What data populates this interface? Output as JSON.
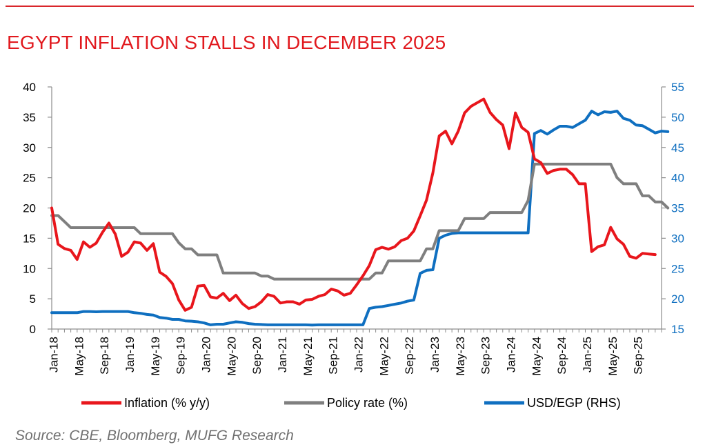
{
  "page": {
    "title": "EGYPT INFLATION STALLS IN DECEMBER 2025",
    "source": "Source: CBE, Bloomberg, MUFG Research"
  },
  "colors": {
    "accent": "#e1191e",
    "inflation": "#e8161c",
    "policy": "#7f7f7f",
    "usd": "#0f6fc0",
    "axis": "#8c8c8c"
  },
  "chart_data": {
    "type": "line",
    "title": "EGYPT INFLATION STALLS IN DECEMBER 2025",
    "xlabel": "",
    "ylabel": "",
    "ylim": [
      0,
      40
    ],
    "y2lim": [
      15,
      55
    ],
    "yticks": [
      0,
      5,
      10,
      15,
      20,
      25,
      30,
      35,
      40
    ],
    "y2ticks": [
      15,
      20,
      25,
      30,
      35,
      40,
      45,
      50,
      55
    ],
    "start": "Jan-18",
    "x_tick_labels": [
      "Jan-18",
      "May-18",
      "Sep-18",
      "Jan-19",
      "May-19",
      "Sep-19",
      "Jan-20",
      "May-20",
      "Sep-20",
      "Jan-21",
      "May-21",
      "Sep-21",
      "Jan-22",
      "May-22",
      "Sep-22",
      "Jan-23",
      "May-23",
      "Sep-23",
      "Jan-24",
      "May-24",
      "Sep-24",
      "Jan-25",
      "May-25",
      "Sep-25"
    ],
    "series": [
      {
        "name": "Inflation (% y/y)",
        "axis": "left",
        "color": "#e8161c",
        "values": [
          20.0,
          14.0,
          13.3,
          13.0,
          11.5,
          14.4,
          13.5,
          14.2,
          16.0,
          17.5,
          15.7,
          12.0,
          12.7,
          14.4,
          14.2,
          13.0,
          14.1,
          9.4,
          8.7,
          7.5,
          4.8,
          3.1,
          3.6,
          7.1,
          7.2,
          5.3,
          5.1,
          5.9,
          4.7,
          5.6,
          4.2,
          3.4,
          3.7,
          4.5,
          5.7,
          5.4,
          4.3,
          4.5,
          4.5,
          4.1,
          4.8,
          4.9,
          5.4,
          5.7,
          6.6,
          6.3,
          5.6,
          5.9,
          7.3,
          8.8,
          10.5,
          13.1,
          13.5,
          13.2,
          13.6,
          14.6,
          15.0,
          16.2,
          18.7,
          21.3,
          25.8,
          31.9,
          32.7,
          30.6,
          32.7,
          35.7,
          36.8,
          37.4,
          38.0,
          35.8,
          34.6,
          33.7,
          29.8,
          35.7,
          33.3,
          32.5,
          28.1,
          27.5,
          25.7,
          26.2,
          26.4,
          26.4,
          25.5,
          24.0,
          24.0,
          12.8,
          13.6,
          13.9,
          16.8,
          14.9,
          14.0,
          12.0,
          11.7,
          12.5,
          12.4,
          12.3
        ]
      },
      {
        "name": "Policy rate (%)",
        "axis": "left",
        "color": "#7f7f7f",
        "values": [
          18.75,
          18.75,
          17.75,
          16.75,
          16.75,
          16.75,
          16.75,
          16.75,
          16.75,
          16.75,
          16.75,
          16.75,
          16.75,
          16.75,
          15.75,
          15.75,
          15.75,
          15.75,
          15.75,
          15.75,
          14.25,
          13.25,
          13.25,
          12.25,
          12.25,
          12.25,
          12.25,
          9.25,
          9.25,
          9.25,
          9.25,
          9.25,
          9.25,
          8.75,
          8.75,
          8.25,
          8.25,
          8.25,
          8.25,
          8.25,
          8.25,
          8.25,
          8.25,
          8.25,
          8.25,
          8.25,
          8.25,
          8.25,
          8.25,
          8.25,
          8.25,
          9.25,
          9.25,
          11.25,
          11.25,
          11.25,
          11.25,
          11.25,
          11.25,
          13.25,
          13.25,
          16.25,
          16.25,
          16.25,
          16.25,
          18.25,
          18.25,
          18.25,
          18.25,
          19.25,
          19.25,
          19.25,
          19.25,
          19.25,
          19.25,
          21.25,
          27.25,
          27.25,
          27.25,
          27.25,
          27.25,
          27.25,
          27.25,
          27.25,
          27.25,
          27.25,
          27.25,
          27.25,
          27.25,
          25.0,
          24.0,
          24.0,
          24.0,
          22.0,
          22.0,
          21.0,
          21.0,
          20.0
        ]
      },
      {
        "name": "USD/EGP (RHS)",
        "axis": "right",
        "color": "#0f6fc0",
        "values": [
          17.7,
          17.7,
          17.7,
          17.7,
          17.7,
          17.9,
          17.9,
          17.85,
          17.9,
          17.9,
          17.9,
          17.9,
          17.9,
          17.7,
          17.6,
          17.4,
          17.3,
          16.9,
          16.8,
          16.6,
          16.6,
          16.35,
          16.3,
          16.2,
          16.0,
          15.7,
          15.8,
          15.8,
          16.0,
          16.2,
          16.1,
          15.9,
          15.8,
          15.75,
          15.7,
          15.7,
          15.7,
          15.7,
          15.7,
          15.7,
          15.7,
          15.65,
          15.7,
          15.7,
          15.7,
          15.7,
          15.7,
          15.7,
          15.7,
          15.7,
          18.4,
          18.6,
          18.7,
          18.9,
          19.1,
          19.3,
          19.6,
          19.8,
          24.2,
          24.7,
          24.8,
          30.0,
          30.5,
          30.8,
          30.9,
          30.9,
          30.9,
          30.9,
          30.9,
          30.9,
          30.9,
          30.9,
          30.9,
          30.9,
          30.9,
          30.9,
          47.3,
          47.8,
          47.2,
          47.9,
          48.5,
          48.5,
          48.3,
          48.9,
          49.5,
          51.0,
          50.4,
          50.9,
          50.8,
          51.0,
          49.8,
          49.5,
          48.7,
          48.6,
          48.0,
          47.4,
          47.7,
          47.6
        ]
      }
    ]
  }
}
